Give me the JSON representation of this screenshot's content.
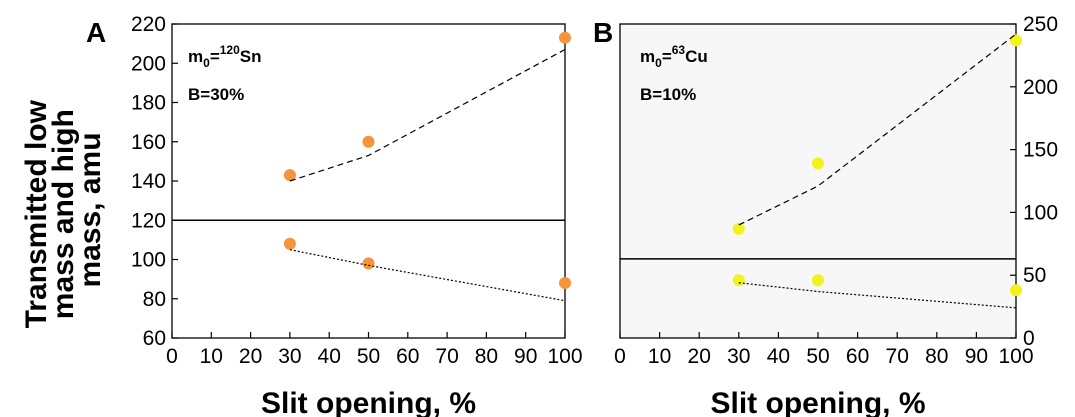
{
  "y_axis_title_lines": [
    "Transmitted low",
    "mass and high",
    "mass, amu"
  ],
  "chart_data": [
    {
      "type": "scatter",
      "panel_label": "A",
      "xlabel": "Slit opening, %",
      "ylabel": "Transmitted low mass and high mass, amu",
      "xlim": [
        0,
        100
      ],
      "ylim": [
        60,
        220
      ],
      "xticks": [
        0,
        10,
        20,
        30,
        40,
        50,
        60,
        70,
        80,
        90,
        100
      ],
      "yticks": [
        60,
        80,
        100,
        120,
        140,
        160,
        180,
        200,
        220
      ],
      "y_axis_side": "left",
      "y_tick_labels_shown": true,
      "background": "#ffffff",
      "annotation": {
        "m_base": "m",
        "m_sub": "0",
        "eq": "=",
        "mass_sup": "120",
        "element": "Sn",
        "b_text": "B=30%"
      },
      "reference_line": 120,
      "point_color": "#f5943a",
      "series": [
        {
          "name": "",
          "kind": "points",
          "x": [
            30,
            50,
            100
          ],
          "y": [
            143,
            160,
            213
          ]
        },
        {
          "name": "",
          "kind": "points",
          "x": [
            30,
            50,
            100
          ],
          "y": [
            108,
            98,
            88
          ]
        },
        {
          "name": "",
          "kind": "dashed",
          "x": [
            30,
            50,
            100
          ],
          "y": [
            140,
            153,
            207
          ]
        },
        {
          "name": "",
          "kind": "dotted",
          "x": [
            30,
            50,
            100
          ],
          "y": [
            105,
            97,
            79
          ]
        }
      ]
    },
    {
      "type": "scatter",
      "panel_label": "B",
      "xlabel": "Slit opening, %",
      "ylabel": "",
      "xlim": [
        0,
        100
      ],
      "ylim": [
        0,
        250
      ],
      "xticks": [
        0,
        10,
        20,
        30,
        40,
        50,
        60,
        70,
        80,
        90,
        100
      ],
      "yticks": [
        0,
        50,
        100,
        150,
        200,
        250
      ],
      "y_axis_side": "right",
      "y_tick_labels_shown": true,
      "background": "#f7f7f7",
      "annotation": {
        "m_base": "m",
        "m_sub": "0",
        "eq": "=",
        "mass_sup": "63",
        "element": "Cu",
        "b_text": "B=10%"
      },
      "reference_line": 63,
      "point_color": "#f2f21c",
      "series": [
        {
          "name": "",
          "kind": "points",
          "x": [
            30,
            50,
            100
          ],
          "y": [
            87,
            139,
            237
          ]
        },
        {
          "name": "",
          "kind": "points",
          "x": [
            30,
            50,
            100
          ],
          "y": [
            46,
            46,
            38
          ]
        },
        {
          "name": "",
          "kind": "dashed",
          "x": [
            30,
            50,
            100
          ],
          "y": [
            90,
            121,
            242
          ]
        },
        {
          "name": "",
          "kind": "dotted",
          "x": [
            30,
            50,
            100
          ],
          "y": [
            44,
            37,
            24
          ]
        }
      ]
    }
  ]
}
